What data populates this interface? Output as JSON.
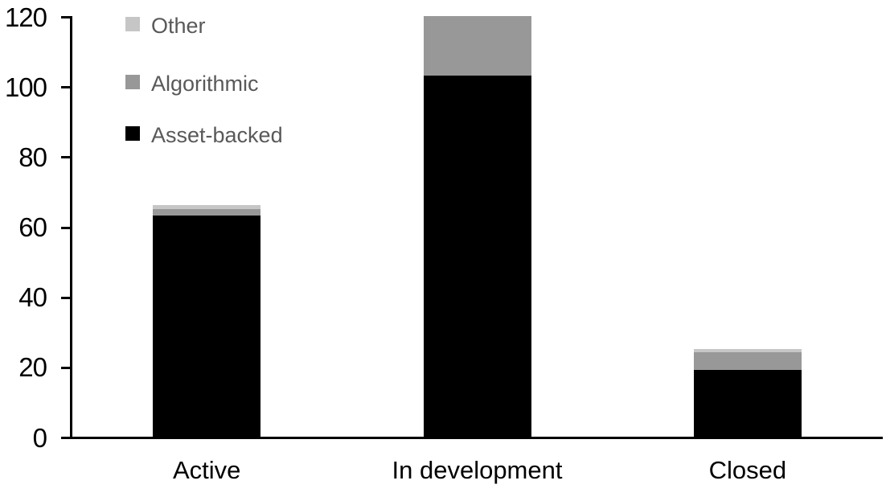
{
  "chart_data": {
    "type": "bar",
    "stacked": true,
    "title": "",
    "xlabel": "",
    "ylabel": "",
    "categories": [
      "Active",
      "In development",
      "Closed"
    ],
    "series": [
      {
        "name": "Asset-backed",
        "color": "#000000",
        "values": [
          63,
          103,
          19
        ]
      },
      {
        "name": "Algorithmic",
        "color": "#989898",
        "values": [
          2,
          17,
          5
        ]
      },
      {
        "name": "Other",
        "color": "#c6c6c6",
        "values": [
          1,
          0,
          1
        ]
      }
    ],
    "totals": [
      66,
      120,
      25
    ],
    "ylim": [
      0,
      120
    ],
    "yticks": [
      0,
      20,
      40,
      60,
      80,
      100,
      120
    ],
    "grid": false,
    "axis_color": "#000000",
    "background_color": "#ffffff",
    "legend": {
      "position": "top-left",
      "text_color": "#595959",
      "entries": [
        {
          "label": "Other",
          "color": "#c6c6c6"
        },
        {
          "label": "Algorithmic",
          "color": "#989898"
        },
        {
          "label": "Asset-backed",
          "color": "#000000"
        }
      ]
    }
  }
}
